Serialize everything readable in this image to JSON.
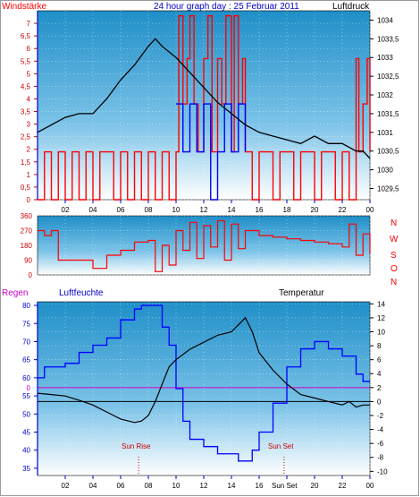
{
  "header": {
    "left_label": "Windstärke",
    "title": "24 hour graph day : 25 Februar 2011",
    "right_label": "Luftdruck"
  },
  "direction_labels": [
    "N",
    "W",
    "S",
    "O",
    "N"
  ],
  "bottom_labels": {
    "rain": "Regen",
    "humidity": "Luftfeuchte",
    "temperature": "Temperatur",
    "sun_rise": "Sun Rise",
    "sun_set": "Sun Set",
    "sun_set_tick": "Sun Set"
  },
  "colors": {
    "wind": "#ff0000",
    "gust": "#0000ff",
    "pressure": "#000000",
    "direction": "#ff0000",
    "humidity": "#0000ff",
    "temperature": "#000000",
    "rain_line": "#cc00cc",
    "sky_top": "#1f8fc8",
    "sky_bottom": "#ffffff"
  },
  "chart_data": [
    {
      "type": "line",
      "title": "24 hour graph day : 25 Februar 2011",
      "x_unit": "hour",
      "xlim": [
        0,
        24
      ],
      "x_ticks": [
        "02",
        "04",
        "06",
        "08",
        "10",
        "12",
        "14",
        "16",
        "18",
        "20",
        "22",
        "00"
      ],
      "ylabel_left": "Windstärke",
      "ylim_left": [
        0,
        7.5
      ],
      "y_ticks_left": [
        "0",
        "0,5",
        "1",
        "1,5",
        "2",
        "2,5",
        "3",
        "3,5",
        "4",
        "4,5",
        "5",
        "5,5",
        "6",
        "6,5",
        "7"
      ],
      "ylabel_right": "Luftdruck",
      "ylim_right": [
        1029.2,
        1034.25
      ],
      "y_ticks_right": [
        "1029,5",
        "1030",
        "1030,5",
        "1031",
        "1031,5",
        "1032",
        "1032,5",
        "1033",
        "1033,5",
        "1034"
      ],
      "series": [
        {
          "name": "Luftdruck",
          "axis": "right",
          "x": [
            0,
            1,
            2,
            3,
            4,
            5,
            6,
            7,
            8,
            8.5,
            9,
            10,
            11,
            12,
            13,
            14,
            15,
            16,
            17,
            18,
            19,
            20,
            21,
            22,
            23,
            23.5,
            24
          ],
          "y": [
            1031.0,
            1031.2,
            1031.4,
            1031.5,
            1031.5,
            1031.9,
            1032.4,
            1032.8,
            1033.3,
            1033.5,
            1033.3,
            1033.0,
            1032.6,
            1032.2,
            1031.8,
            1031.5,
            1031.2,
            1031.0,
            1030.9,
            1030.8,
            1030.7,
            1030.9,
            1030.7,
            1030.7,
            1030.5,
            1030.5,
            1030.3
          ]
        },
        {
          "name": "Windstärke",
          "axis": "left",
          "x": [
            0,
            0.5,
            1,
            1.5,
            2,
            2.5,
            3,
            3.5,
            4,
            4.5,
            5,
            5.5,
            6,
            6.5,
            7,
            7.5,
            8,
            8.5,
            9,
            9.5,
            10,
            10.2,
            10.5,
            10.8,
            11,
            11.3,
            11.6,
            12,
            12.3,
            12.6,
            13,
            13.3,
            13.6,
            14,
            14.2,
            14.5,
            14.8,
            15,
            15.5,
            16,
            16.5,
            17,
            17.5,
            18,
            18.5,
            19,
            19.5,
            20,
            20.5,
            21,
            21.5,
            22,
            22.5,
            23,
            23.2,
            23.5,
            23.8,
            24
          ],
          "y": [
            0,
            1.9,
            0,
            1.9,
            0,
            1.9,
            0,
            1.9,
            0,
            1.9,
            1.9,
            0,
            1.9,
            0,
            1.9,
            0,
            1.9,
            0,
            1.9,
            0,
            1.9,
            7.3,
            3.8,
            5.6,
            7.3,
            3.8,
            1.9,
            5.6,
            7.3,
            1.9,
            5.6,
            3.8,
            7.3,
            1.9,
            7.3,
            3.8,
            5.6,
            1.9,
            0,
            1.9,
            1.9,
            0,
            1.9,
            1.9,
            0,
            1.9,
            1.9,
            0,
            1.9,
            1.9,
            0,
            1.9,
            0,
            5.6,
            1.9,
            3.8,
            5.6,
            1.9
          ]
        },
        {
          "name": "Böen",
          "axis": "left",
          "x": [
            10,
            10.5,
            11,
            11.5,
            12,
            12.5,
            13,
            13.5,
            14,
            14.5,
            15
          ],
          "y": [
            3.8,
            1.9,
            3.8,
            1.9,
            3.8,
            0,
            1.9,
            3.8,
            1.9,
            3.8,
            1.9
          ]
        }
      ]
    },
    {
      "type": "line",
      "x_unit": "hour",
      "xlim": [
        0,
        24
      ],
      "ylim": [
        0,
        360
      ],
      "y_ticks": [
        "0",
        "90",
        "180",
        "270",
        "360"
      ],
      "series": [
        {
          "name": "Windrichtung",
          "x": [
            0,
            0.5,
            1,
            1.5,
            2,
            3,
            4,
            5,
            6,
            7,
            8,
            8.5,
            9,
            9.5,
            10,
            10.5,
            11,
            11.5,
            12,
            12.5,
            13,
            13.5,
            14,
            14.5,
            15,
            16,
            17,
            18,
            19,
            20,
            21,
            22,
            22.5,
            23,
            23.5,
            24
          ],
          "y": [
            270,
            240,
            270,
            90,
            90,
            90,
            40,
            120,
            150,
            200,
            210,
            20,
            180,
            60,
            270,
            150,
            320,
            100,
            300,
            170,
            330,
            90,
            310,
            160,
            270,
            240,
            230,
            220,
            210,
            200,
            190,
            170,
            310,
            120,
            250,
            130
          ]
        }
      ]
    },
    {
      "type": "line",
      "x_unit": "hour",
      "xlim": [
        0,
        24
      ],
      "ylabel_left": "Luftfeuchte",
      "ylim_left": [
        33,
        81
      ],
      "y_ticks_left": [
        "35",
        "40",
        "45",
        "50",
        "55",
        "60",
        "65",
        "70",
        "75",
        "80"
      ],
      "ylabel_right": "Temperatur",
      "ylim_right": [
        -10.6,
        14.3
      ],
      "y_ticks_right": [
        "-10",
        "-8",
        "-6",
        "-4",
        "-2",
        "0",
        "2",
        "4",
        "6",
        "8",
        "10",
        "12",
        "14"
      ],
      "series": [
        {
          "name": "Luftfeuchte",
          "axis": "left",
          "x": [
            0,
            0.5,
            1,
            2,
            3,
            4,
            5,
            6,
            7,
            7.5,
            8,
            8.5,
            9,
            9.5,
            10,
            10.5,
            11,
            12,
            13,
            14,
            14.5,
            15,
            15.5,
            16,
            17,
            18,
            19,
            20,
            21,
            22,
            23,
            23.5,
            24
          ],
          "y": [
            60,
            63,
            63,
            64,
            67,
            69,
            71,
            76,
            79,
            80,
            80,
            80,
            74,
            69,
            57,
            48,
            43,
            41,
            39,
            39,
            37,
            37,
            40,
            45,
            53,
            63,
            68,
            70,
            68,
            66,
            61,
            59,
            59
          ]
        },
        {
          "name": "Temperatur",
          "axis": "right",
          "x": [
            0,
            1,
            2,
            3,
            4,
            5,
            6,
            7,
            7.5,
            8,
            8.5,
            9,
            9.5,
            10,
            11,
            12,
            13,
            14,
            14.5,
            15,
            15.5,
            16,
            17,
            18,
            19,
            20,
            21,
            22,
            22.5,
            23,
            23.5,
            24
          ],
          "y": [
            1.2,
            1.0,
            0.8,
            0.2,
            -0.5,
            -1.5,
            -2.5,
            -3.0,
            -2.8,
            -2.0,
            0,
            2.5,
            5.0,
            6.0,
            7.5,
            8.5,
            9.5,
            10.0,
            11.0,
            12.0,
            10.0,
            7.0,
            4.5,
            2.5,
            1.0,
            0.5,
            0.0,
            -0.5,
            0,
            -0.8,
            -0.5,
            -0.5
          ]
        }
      ],
      "rain_line_value": 0,
      "sun_rise_hour": 7.3,
      "sun_set_hour": 17.8
    }
  ]
}
